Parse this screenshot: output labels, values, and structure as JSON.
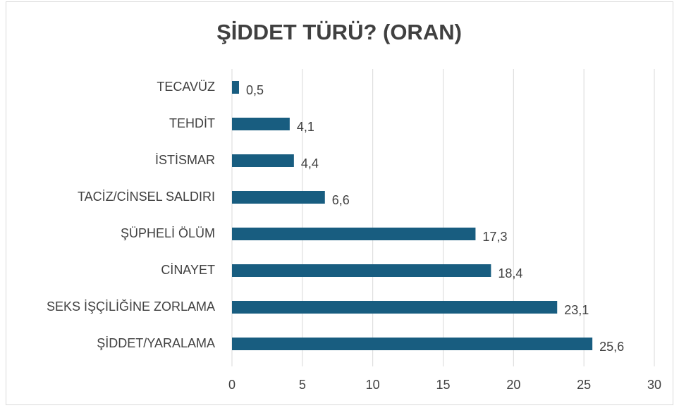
{
  "chart_data": {
    "type": "barh",
    "title": "ŞİDDET TÜRÜ? (ORAN)",
    "categories": [
      "TECAVÜZ",
      "TEHDİT",
      "İSTİSMAR",
      "TACİZ/CİNSEL SALDIRI",
      "ŞÜPHELİ ÖLÜM",
      "CİNAYET",
      "SEKS İŞÇİLİĞİNE ZORLAMA",
      "ŞİDDET/YARALAMA"
    ],
    "values": [
      0.5,
      4.1,
      4.4,
      6.6,
      17.3,
      18.4,
      23.1,
      25.6
    ],
    "value_labels": [
      "0,5",
      "4,1",
      "4,4",
      "6,6",
      "17,3",
      "18,4",
      "23,1",
      "25,6"
    ],
    "color": "#185d80",
    "xlim": [
      0,
      30
    ],
    "xticks": [
      0,
      5,
      10,
      15,
      20,
      25,
      30
    ],
    "grid": true
  }
}
